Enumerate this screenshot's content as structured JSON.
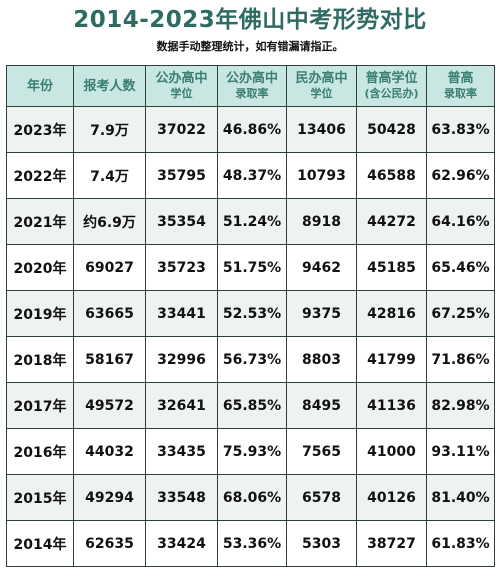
{
  "title": "2014-2023年佛山中考形势对比",
  "subtitle": "数据手动整理统计，如有错漏请指正。",
  "headers": [
    {
      "line1": "年份",
      "line2": ""
    },
    {
      "line1": "报考人数",
      "line2": ""
    },
    {
      "line1": "公办高中",
      "line2": "学位"
    },
    {
      "line1": "公办高中",
      "line2": "录取率"
    },
    {
      "line1": "民办高中",
      "line2": "学位"
    },
    {
      "line1": "普高学位",
      "line2": "(含公民办)"
    },
    {
      "line1": "普高",
      "line2": "录取率"
    }
  ],
  "rows": [
    [
      "2023年",
      "7.9万",
      "37022",
      "46.86%",
      "13406",
      "50428",
      "63.83%"
    ],
    [
      "2022年",
      "7.4万",
      "35795",
      "48.37%",
      "10793",
      "46588",
      "62.96%"
    ],
    [
      "2021年",
      "约6.9万",
      "35354",
      "51.24%",
      "8918",
      "44272",
      "64.16%"
    ],
    [
      "2020年",
      "69027",
      "35723",
      "51.75%",
      "9462",
      "45185",
      "65.46%"
    ],
    [
      "2019年",
      "63665",
      "33441",
      "52.53%",
      "9375",
      "42816",
      "67.25%"
    ],
    [
      "2018年",
      "58167",
      "32996",
      "56.73%",
      "8803",
      "41799",
      "71.86%"
    ],
    [
      "2017年",
      "49572",
      "32641",
      "65.85%",
      "8495",
      "41136",
      "82.98%"
    ],
    [
      "2016年",
      "44032",
      "33435",
      "75.93%",
      "7565",
      "41000",
      "93.11%"
    ],
    [
      "2015年",
      "49294",
      "33548",
      "68.06%",
      "6578",
      "40126",
      "81.40%"
    ],
    [
      "2014年",
      "62635",
      "33424",
      "53.36%",
      "5303",
      "38727",
      "61.83%"
    ]
  ]
}
